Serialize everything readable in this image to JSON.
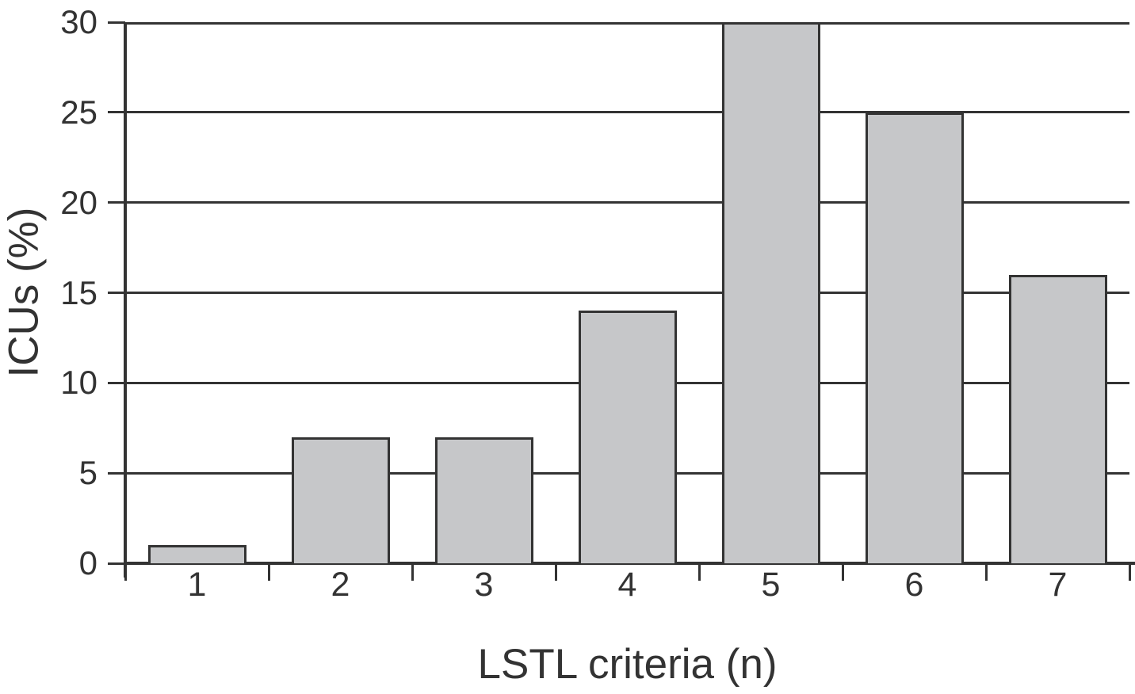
{
  "chart_data": {
    "type": "bar",
    "categories": [
      "1",
      "2",
      "3",
      "4",
      "5",
      "6",
      "7"
    ],
    "values": [
      1,
      7,
      7,
      14,
      30,
      25,
      16
    ],
    "title": "",
    "xlabel": "LSTL criteria (n)",
    "ylabel": "ICUs (%)",
    "ylim": [
      0,
      30
    ],
    "yticks": [
      0,
      5,
      10,
      15,
      20,
      25,
      30
    ],
    "grid": "horizontal-only",
    "legend": "none",
    "colors": {
      "bar_fill": "#c6c7c9",
      "bar_border": "#333333",
      "axis": "#333333",
      "text": "#333333",
      "background": "#ffffff"
    }
  }
}
